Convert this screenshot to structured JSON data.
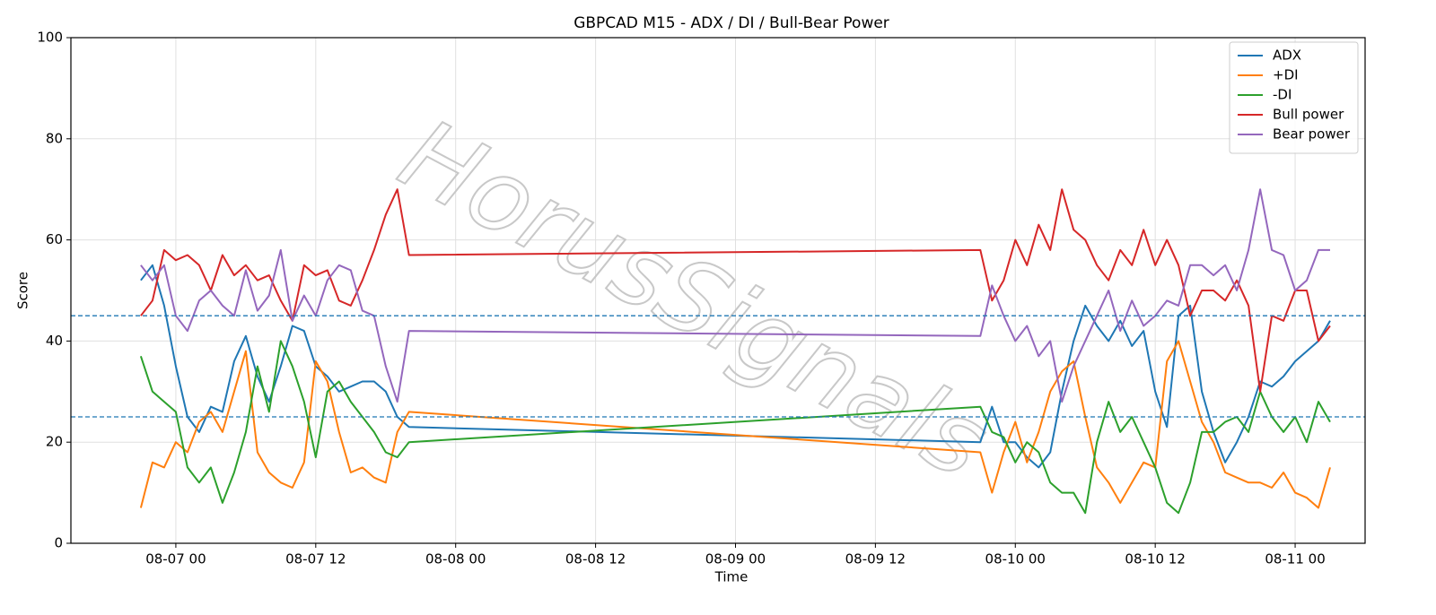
{
  "chart_data": {
    "type": "line",
    "title": "GBPCAD M15 - ADX / DI / Bull-Bear Power",
    "xlabel": "Time",
    "ylabel": "Score",
    "watermark": "HorusSignals",
    "x": [
      "08-06 21",
      "08-06 22",
      "08-06 23",
      "08-07 00",
      "08-07 01",
      "08-07 02",
      "08-07 03",
      "08-07 04",
      "08-07 05",
      "08-07 06",
      "08-07 07",
      "08-07 08",
      "08-07 09",
      "08-07 10",
      "08-07 11",
      "08-07 12",
      "08-07 13",
      "08-07 14",
      "08-07 15",
      "08-07 16",
      "08-07 17",
      "08-07 18",
      "08-07 19",
      "08-07 20",
      "08-09 21",
      "08-09 22",
      "08-09 23",
      "08-10 00",
      "08-10 01",
      "08-10 02",
      "08-10 03",
      "08-10 04",
      "08-10 05",
      "08-10 06",
      "08-10 07",
      "08-10 08",
      "08-10 09",
      "08-10 10",
      "08-10 11",
      "08-10 12",
      "08-10 13",
      "08-10 14",
      "08-10 15",
      "08-10 16",
      "08-10 17",
      "08-10 18",
      "08-10 19",
      "08-10 20",
      "08-10 21",
      "08-10 22",
      "08-10 23",
      "08-11 00",
      "08-11 01",
      "08-11 02",
      "08-11 03"
    ],
    "series": [
      {
        "name": "ADX",
        "color": "#1f77b4",
        "values": [
          52,
          55,
          47,
          35,
          25,
          22,
          27,
          26,
          36,
          41,
          33,
          28,
          35,
          43,
          42,
          35,
          33,
          30,
          31,
          32,
          32,
          30,
          25,
          23,
          20,
          27,
          20,
          20,
          17,
          15,
          18,
          30,
          40,
          47,
          43,
          40,
          44,
          39,
          42,
          30,
          23,
          45,
          47,
          30,
          22,
          16,
          20,
          25,
          32,
          31,
          33,
          36,
          38,
          40,
          44
        ]
      },
      {
        "name": "+DI",
        "color": "#ff7f0e",
        "values": [
          7,
          16,
          15,
          20,
          18,
          24,
          26,
          22,
          30,
          38,
          18,
          14,
          12,
          11,
          16,
          36,
          32,
          22,
          14,
          15,
          13,
          12,
          22,
          26,
          18,
          10,
          18,
          24,
          16,
          22,
          30,
          34,
          36,
          25,
          15,
          12,
          8,
          12,
          16,
          15,
          36,
          40,
          32,
          24,
          20,
          14,
          13,
          12,
          12,
          11,
          14,
          10,
          9,
          7,
          15
        ]
      },
      {
        "name": "-DI",
        "color": "#2ca02c",
        "values": [
          37,
          30,
          28,
          26,
          15,
          12,
          15,
          8,
          14,
          22,
          35,
          26,
          40,
          35,
          28,
          17,
          30,
          32,
          28,
          25,
          22,
          18,
          17,
          20,
          27,
          22,
          21,
          16,
          20,
          18,
          12,
          10,
          10,
          6,
          20,
          28,
          22,
          25,
          20,
          15,
          8,
          6,
          12,
          22,
          22,
          24,
          25,
          22,
          30,
          25,
          22,
          25,
          20,
          28,
          24
        ]
      },
      {
        "name": "Bull power",
        "color": "#d62728",
        "values": [
          45,
          48,
          58,
          56,
          57,
          55,
          50,
          57,
          53,
          55,
          52,
          53,
          48,
          44,
          55,
          53,
          54,
          48,
          47,
          52,
          58,
          65,
          70,
          57,
          58,
          48,
          52,
          60,
          55,
          63,
          58,
          70,
          62,
          60,
          55,
          52,
          58,
          55,
          62,
          55,
          60,
          55,
          45,
          50,
          50,
          48,
          52,
          47,
          30,
          45,
          44,
          50,
          50,
          40,
          43
        ]
      },
      {
        "name": "Bear power",
        "color": "#9467bd",
        "values": [
          55,
          52,
          55,
          45,
          42,
          48,
          50,
          47,
          45,
          54,
          46,
          49,
          58,
          44,
          49,
          45,
          52,
          55,
          54,
          46,
          45,
          35,
          28,
          42,
          41,
          51,
          45,
          40,
          43,
          37,
          40,
          28,
          35,
          40,
          45,
          50,
          42,
          48,
          43,
          45,
          48,
          47,
          55,
          55,
          53,
          55,
          50,
          58,
          70,
          58,
          57,
          50,
          52,
          58,
          58
        ]
      }
    ],
    "hlines": [
      45,
      25
    ],
    "hline_color": "#1f77b4",
    "xlim": [
      "08-06 15",
      "08-11 06"
    ],
    "xticks": [
      "08-07 00",
      "08-07 12",
      "08-08 00",
      "08-08 12",
      "08-09 00",
      "08-09 12",
      "08-10 00",
      "08-10 12",
      "08-11 00"
    ],
    "ylim": [
      0,
      100
    ],
    "yticks": [
      0,
      20,
      40,
      60,
      80,
      100
    ],
    "grid": true,
    "legend": "upper right"
  }
}
